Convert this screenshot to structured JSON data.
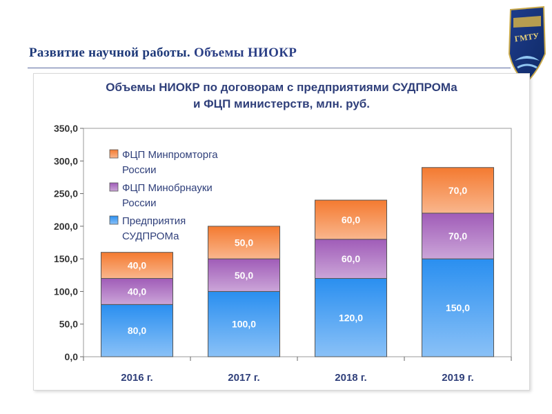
{
  "header": {
    "title_part1": "Развитие научной работы.",
    "title_part2": "Объемы НИОКР"
  },
  "logo": {
    "icon": "university-shield-logo",
    "text": "ГМТУ"
  },
  "colors": {
    "enterprises": "#2a8ff0",
    "minobrnauki": "#a05cb8",
    "minpromtorg": "#f47a30"
  },
  "chart_data": {
    "type": "bar",
    "stacked": true,
    "title": "Объемы НИОКР по договорам с предприятиями СУДПРОМа",
    "subtitle": "и ФЦП министерств, млн. руб.",
    "categories": [
      "2016 г.",
      "2017 г.",
      "2018 г.",
      "2019 г."
    ],
    "series": [
      {
        "name": "Предприятия СУДПРОМа",
        "legend_lines": [
          "Предприятия",
          "СУДПРОМа"
        ],
        "color": "#2a8ff0",
        "values": [
          80,
          100,
          120,
          150
        ],
        "labels": [
          "80,0",
          "100,0",
          "120,0",
          "150,0"
        ]
      },
      {
        "name": "ФЦП Минобрнауки России",
        "legend_lines": [
          "ФЦП Минобрнауки",
          "России"
        ],
        "color": "#a05cb8",
        "values": [
          40,
          50,
          60,
          70
        ],
        "labels": [
          "40,0",
          "50,0",
          "60,0",
          "70,0"
        ]
      },
      {
        "name": "ФЦП Минпромторга России",
        "legend_lines": [
          "ФЦП Минпромторга",
          "России"
        ],
        "color": "#f47a30",
        "values": [
          40,
          50,
          60,
          70
        ],
        "labels": [
          "40,0",
          "50,0",
          "60,0",
          "70,0"
        ]
      }
    ],
    "ylim": [
      0,
      350
    ],
    "yticks": [
      0,
      50,
      100,
      150,
      200,
      250,
      300,
      350
    ],
    "ytick_labels": [
      "0,0",
      "50,0",
      "100,0",
      "150,0",
      "200,0",
      "250,0",
      "300,0",
      "350,0"
    ],
    "legend_position": "top-left",
    "grid": false
  }
}
